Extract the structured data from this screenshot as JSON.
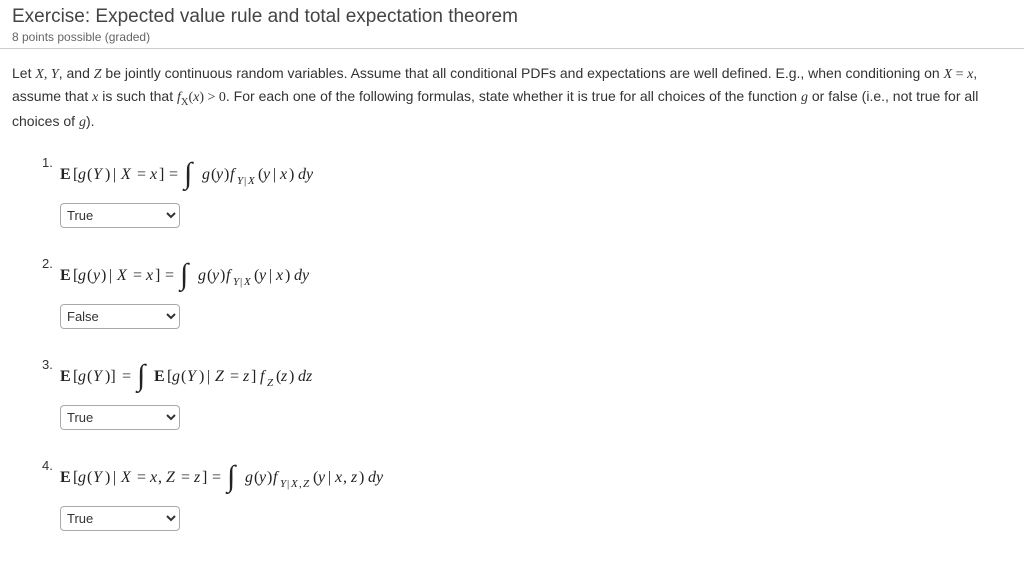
{
  "header": {
    "title": "Exercise: Expected value rule and total expectation theorem",
    "subtitle": "8 points possible (graded)"
  },
  "intro": {
    "prefix": "Let ",
    "vars": "X, Y",
    "mid1": ", and ",
    "varZ": "Z",
    "mid2": " be jointly continuous random variables. Assume that all conditional PDFs and expectations are well defined. E.g., when conditioning on ",
    "cond": "X = x",
    "mid3": ", assume that ",
    "varx": "x",
    "mid4": " is such that ",
    "fx": "f_X(x) > 0",
    "mid5": ". For each one of the following formulas, state whether it is true for all choices of the function ",
    "varg": "g",
    "mid6": " or false (i.e., not true for all choices of ",
    "varg2": "g",
    "mid7": ")."
  },
  "problems": [
    {
      "num": "1.",
      "selected": "True"
    },
    {
      "num": "2.",
      "selected": "False"
    },
    {
      "num": "3.",
      "selected": "True"
    },
    {
      "num": "4.",
      "selected": "True"
    }
  ],
  "options": [
    "",
    "True",
    "False"
  ],
  "colors": {
    "text": "#333333",
    "border": "#cccccc",
    "select_border": "#aaaaaa"
  }
}
